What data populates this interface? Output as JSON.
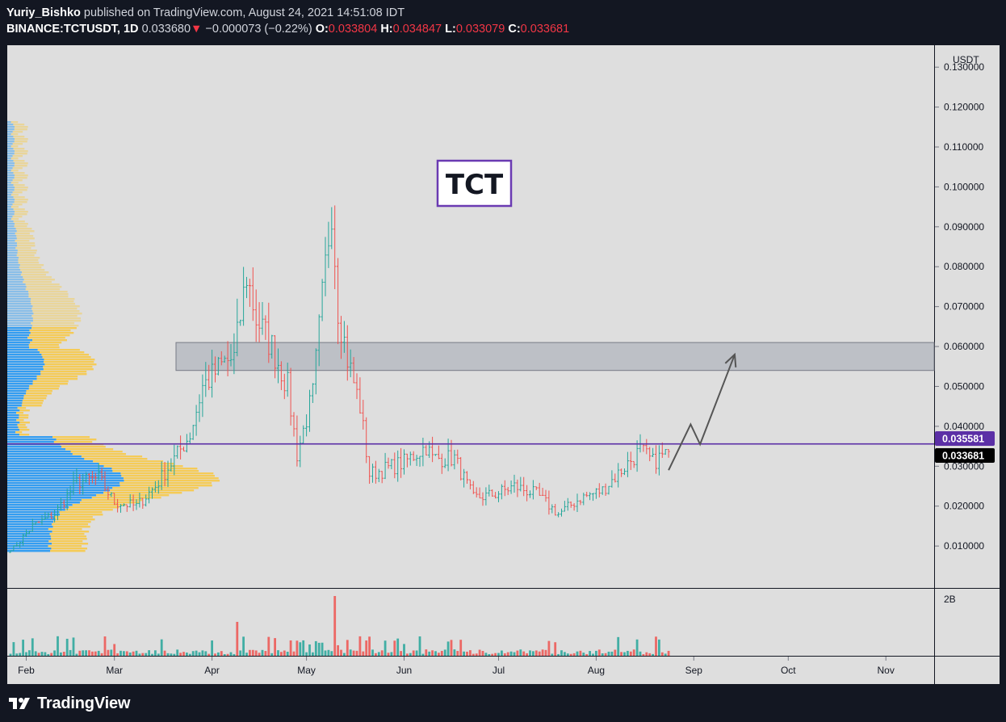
{
  "header": {
    "author": "Yuriy_Bishko",
    "published_text": "published on TradingView.com, August 24, 2021 14:51:08 IDT",
    "symbol": "BINANCE:TCTUSDT, 1D",
    "price": "0.033680",
    "change": "−0.000073 (−0.22%)",
    "o_label": "O:",
    "o_value": "0.033804",
    "h_label": "H:",
    "h_value": "0.034847",
    "l_label": "L:",
    "l_value": "0.033079",
    "c_label": "C:",
    "c_value": "0.033681"
  },
  "annotation_label": "TCT",
  "price_labels": {
    "level_line": "0.035581",
    "current": "0.033681",
    "currency": "USDT",
    "volume_tick": "2B"
  },
  "footer": {
    "logo_text": "TradingView"
  },
  "colors": {
    "up": "#26a69a",
    "down": "#ef5350",
    "level_line": "#5b2fa6",
    "annotation_border": "#6a3ab2",
    "zone_fill": "#b2b5be",
    "vp_up": "#2196f3",
    "vp_down": "#f7c948",
    "chart_bg": "#dedede"
  },
  "chart_data": {
    "type": "candlestick",
    "symbol": "BINANCE:TCTUSDT",
    "interval": "1D",
    "x_tick_labels": [
      "Feb",
      "Mar",
      "Apr",
      "May",
      "Jun",
      "Jul",
      "Aug",
      "Sep",
      "Oct",
      "Nov"
    ],
    "y_ticks": [
      0.01,
      0.02,
      0.03,
      0.04,
      0.05,
      0.06,
      0.07,
      0.08,
      0.09,
      0.1,
      0.11,
      0.12,
      0.13
    ],
    "ylim": [
      -0.0005,
      0.1355
    ],
    "price_series": [
      {
        "date": "2021-01-28",
        "close": 0.0095
      },
      {
        "date": "2021-02-03",
        "close": 0.015
      },
      {
        "date": "2021-02-10",
        "close": 0.018
      },
      {
        "date": "2021-02-17",
        "close": 0.026
      },
      {
        "date": "2021-02-24",
        "close": 0.027
      },
      {
        "date": "2021-03-01",
        "close": 0.021
      },
      {
        "date": "2021-03-08",
        "close": 0.02
      },
      {
        "date": "2021-03-14",
        "close": 0.025
      },
      {
        "date": "2021-03-21",
        "close": 0.033
      },
      {
        "date": "2021-03-25",
        "close": 0.038
      },
      {
        "date": "2021-03-29",
        "close": 0.05
      },
      {
        "date": "2021-04-05",
        "close": 0.056
      },
      {
        "date": "2021-04-08",
        "close": 0.057
      },
      {
        "date": "2021-04-12",
        "close": 0.078
      },
      {
        "date": "2021-04-15",
        "close": 0.067
      },
      {
        "date": "2021-04-20",
        "close": 0.06
      },
      {
        "date": "2021-04-25",
        "close": 0.05
      },
      {
        "date": "2021-04-28",
        "close": 0.033
      },
      {
        "date": "2021-05-03",
        "close": 0.048
      },
      {
        "date": "2021-05-06",
        "close": 0.072
      },
      {
        "date": "2021-05-09",
        "close": 0.096
      },
      {
        "date": "2021-05-11",
        "close": 0.07
      },
      {
        "date": "2021-05-14",
        "close": 0.057
      },
      {
        "date": "2021-05-18",
        "close": 0.045
      },
      {
        "date": "2021-05-21",
        "close": 0.028
      },
      {
        "date": "2021-05-25",
        "close": 0.029
      },
      {
        "date": "2021-06-01",
        "close": 0.031
      },
      {
        "date": "2021-06-08",
        "close": 0.035
      },
      {
        "date": "2021-06-10",
        "close": 0.032
      },
      {
        "date": "2021-06-17",
        "close": 0.032
      },
      {
        "date": "2021-06-23",
        "close": 0.022
      },
      {
        "date": "2021-06-30",
        "close": 0.023
      },
      {
        "date": "2021-07-06",
        "close": 0.025
      },
      {
        "date": "2021-07-13",
        "close": 0.023
      },
      {
        "date": "2021-07-20",
        "close": 0.018
      },
      {
        "date": "2021-07-27",
        "close": 0.022
      },
      {
        "date": "2021-08-03",
        "close": 0.024
      },
      {
        "date": "2021-08-09",
        "close": 0.029
      },
      {
        "date": "2021-08-15",
        "close": 0.034
      },
      {
        "date": "2021-08-19",
        "close": 0.031
      },
      {
        "date": "2021-08-24",
        "close": 0.0337
      }
    ],
    "volume_spikes": [
      {
        "date": "2021-04-09",
        "direction": "down"
      },
      {
        "date": "2021-05-10",
        "direction": "down"
      },
      {
        "date": "2021-06-06",
        "direction": "up"
      }
    ],
    "horizontal_level": 0.035581,
    "zone": {
      "low": 0.054,
      "high": 0.061
    },
    "projection_path": [
      {
        "date": "2021-08-24",
        "price": 0.029
      },
      {
        "date": "2021-08-31",
        "price": 0.0405
      },
      {
        "date": "2021-09-03",
        "price": 0.0355
      },
      {
        "date": "2021-09-14",
        "price": 0.058
      }
    ],
    "last_price": 0.033681
  }
}
